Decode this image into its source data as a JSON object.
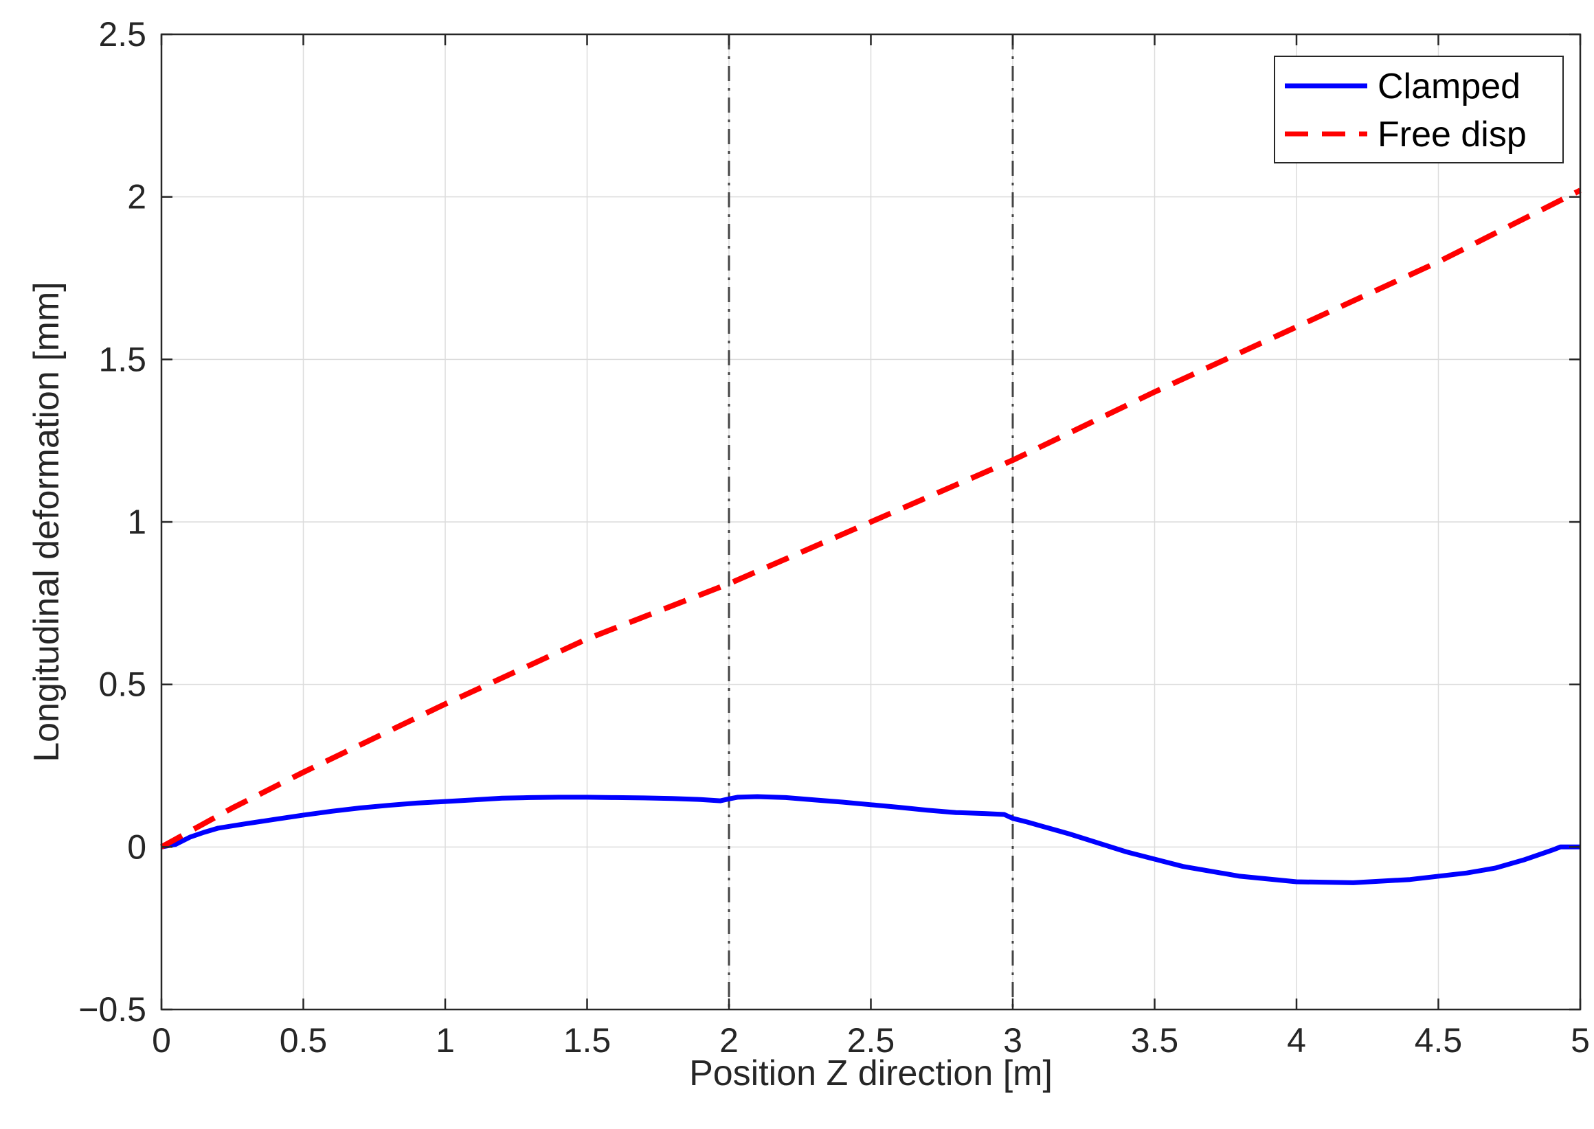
{
  "chart_data": {
    "type": "line",
    "title": "",
    "xlabel": "Position Z direction [m]",
    "ylabel": "Longitudinal deformation [mm]",
    "xlim": [
      0,
      5
    ],
    "ylim": [
      -0.5,
      2.5
    ],
    "x_ticks": [
      "0",
      "0.5",
      "1",
      "1.5",
      "2",
      "2.5",
      "3",
      "3.5",
      "4",
      "4.5",
      "5"
    ],
    "y_ticks": [
      "−0.5",
      "0",
      "0.5",
      "1",
      "1.5",
      "2",
      "2.5"
    ],
    "grid": true,
    "legend_position": "top-right",
    "vertical_markers": [
      2,
      3
    ],
    "series": [
      {
        "name": "Clamped",
        "color": "#0000ff",
        "style": "solid",
        "x": [
          0,
          0.05,
          0.1,
          0.15,
          0.2,
          0.25,
          0.3,
          0.4,
          0.5,
          0.6,
          0.7,
          0.8,
          0.9,
          1.0,
          1.1,
          1.2,
          1.3,
          1.4,
          1.5,
          1.6,
          1.7,
          1.8,
          1.9,
          1.97,
          2.0,
          2.03,
          2.1,
          2.2,
          2.3,
          2.4,
          2.5,
          2.6,
          2.7,
          2.8,
          2.9,
          2.97,
          3.0,
          3.05,
          3.2,
          3.4,
          3.6,
          3.8,
          4.0,
          4.2,
          4.4,
          4.6,
          4.7,
          4.8,
          4.9,
          4.93,
          5.0
        ],
        "y": [
          0.0,
          0.008,
          0.03,
          0.045,
          0.058,
          0.065,
          0.072,
          0.085,
          0.098,
          0.11,
          0.12,
          0.128,
          0.135,
          0.14,
          0.145,
          0.15,
          0.152,
          0.153,
          0.153,
          0.152,
          0.151,
          0.149,
          0.146,
          0.142,
          0.148,
          0.153,
          0.155,
          0.152,
          0.145,
          0.138,
          0.13,
          0.122,
          0.113,
          0.106,
          0.103,
          0.1,
          0.088,
          0.077,
          0.04,
          -0.015,
          -0.06,
          -0.09,
          -0.107,
          -0.11,
          -0.1,
          -0.08,
          -0.065,
          -0.04,
          -0.01,
          0.0,
          0.0
        ]
      },
      {
        "name": "Free disp",
        "color": "#ff0000",
        "style": "dashed",
        "x": [
          0,
          0.25,
          0.5,
          1.0,
          1.5,
          2.0,
          2.5,
          3.0,
          3.5,
          4.0,
          4.5,
          5.0
        ],
        "y": [
          0.0,
          0.12,
          0.23,
          0.44,
          0.64,
          0.81,
          1.0,
          1.19,
          1.4,
          1.6,
          1.8,
          2.02
        ]
      }
    ]
  }
}
